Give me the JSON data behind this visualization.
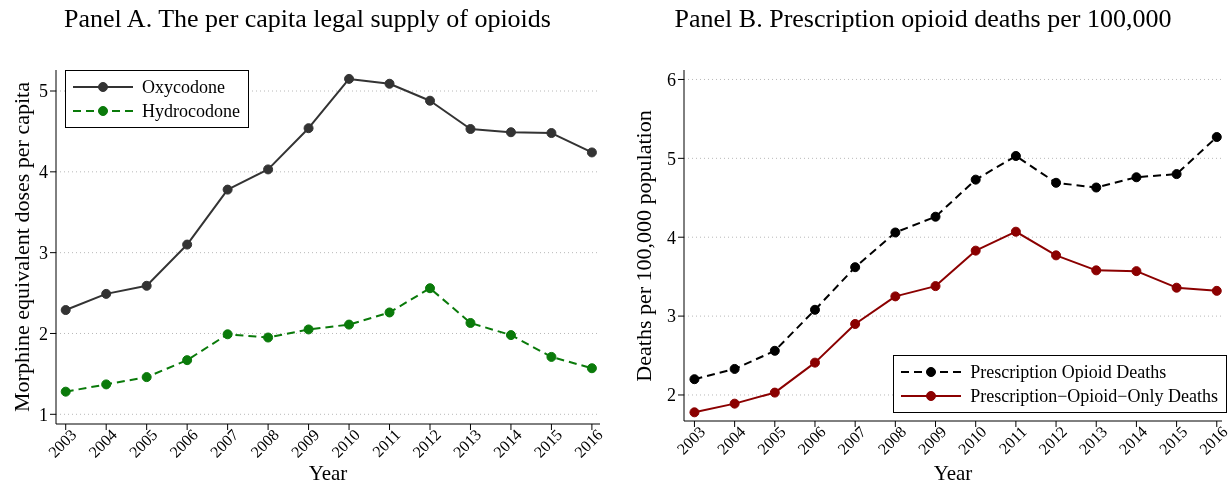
{
  "chart_data": [
    {
      "type": "line",
      "title": "Panel A. The per capita legal supply of opioids",
      "xlabel": "Year",
      "ylabel": "Morphine equivalent doses per capita",
      "x": [
        2003,
        2004,
        2005,
        2006,
        2007,
        2008,
        2009,
        2010,
        2011,
        2012,
        2013,
        2014,
        2015,
        2016
      ],
      "xlim": [
        2002.76,
        2016.2
      ],
      "xticks": [
        2003,
        2004,
        2005,
        2006,
        2007,
        2008,
        2009,
        2010,
        2011,
        2012,
        2013,
        2014,
        2015,
        2016
      ],
      "ylim": [
        0.88,
        5.26
      ],
      "yticks": [
        1,
        2,
        3,
        4,
        5
      ],
      "grid": "y",
      "legend": "top left",
      "marker": "circle",
      "series": [
        {
          "name": "Oxycodone",
          "color": "#333333",
          "line_style": "solid",
          "values": [
            2.29,
            2.49,
            2.59,
            3.1,
            3.78,
            4.03,
            4.54,
            5.15,
            5.09,
            4.88,
            4.53,
            4.49,
            4.48,
            4.24
          ]
        },
        {
          "name": "Hydrocodone",
          "color": "#0a7a0a",
          "line_style": "dashed",
          "values": [
            1.28,
            1.37,
            1.46,
            1.67,
            1.99,
            1.95,
            2.05,
            2.11,
            2.26,
            2.56,
            2.13,
            1.98,
            1.71,
            1.57
          ]
        }
      ]
    },
    {
      "type": "line",
      "title": "Panel B. Prescription opioid deaths per 100,000",
      "xlabel": "Year",
      "ylabel": "Deaths per 100,000 population",
      "x": [
        2003,
        2004,
        2005,
        2006,
        2007,
        2008,
        2009,
        2010,
        2011,
        2012,
        2013,
        2014,
        2015,
        2016
      ],
      "xlim": [
        2002.74,
        2016.13
      ],
      "xticks": [
        2003,
        2004,
        2005,
        2006,
        2007,
        2008,
        2009,
        2010,
        2011,
        2012,
        2013,
        2014,
        2015,
        2016
      ],
      "ylim": [
        1.67,
        6.12
      ],
      "yticks": [
        2,
        3,
        4,
        5,
        6
      ],
      "grid": "y",
      "legend": "bottom right",
      "marker": "circle",
      "series": [
        {
          "name": "Prescription Opioid Deaths",
          "color": "#000000",
          "line_style": "dashed",
          "values": [
            2.2,
            2.33,
            2.56,
            3.08,
            3.62,
            4.06,
            4.26,
            4.73,
            5.03,
            4.69,
            4.63,
            4.76,
            4.8,
            5.27
          ]
        },
        {
          "name": "Prescription−Opioid−Only Deaths",
          "color": "#8b0000",
          "line_style": "solid",
          "values": [
            1.78,
            1.89,
            2.03,
            2.41,
            2.9,
            3.25,
            3.38,
            3.83,
            4.07,
            3.77,
            3.58,
            3.57,
            3.36,
            3.32
          ]
        }
      ]
    }
  ]
}
